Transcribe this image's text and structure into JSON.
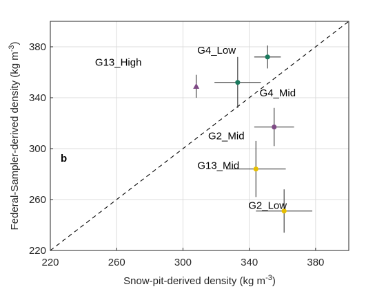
{
  "chart_data": {
    "type": "scatter",
    "panel_letter": "b",
    "xlabel": {
      "text": "Snow-pit-derived density (kg m",
      "sup": "-3",
      "tail": ")"
    },
    "ylabel": {
      "text": "Federal-Sampler-derived density (kg m",
      "sup": "-3",
      "tail": ")"
    },
    "xlim": [
      220,
      400
    ],
    "ylim": [
      220,
      400
    ],
    "xticks": [
      220,
      260,
      300,
      340,
      380
    ],
    "yticks": [
      220,
      260,
      300,
      340,
      380
    ],
    "grid": true,
    "one_to_one_line": true,
    "points": [
      {
        "label": "G4_Low",
        "x": 351,
        "y": 372,
        "xerr": 8,
        "yerr": 9,
        "marker": "circle",
        "color": "#1b7a5e"
      },
      {
        "label": "G4_Mid",
        "x": 333,
        "y": 352,
        "xerr": 14,
        "yerr": 20,
        "marker": "circle",
        "color": "#1b7a5e"
      },
      {
        "label": "G13_High",
        "x": 308,
        "y": 349,
        "xerr": 0,
        "yerr": 9,
        "marker": "triangle",
        "color": "#7e4a85"
      },
      {
        "label": "G13_Mid",
        "x": 355,
        "y": 317,
        "xerr": 12,
        "yerr": 15,
        "marker": "circle",
        "color": "#7e4a85"
      },
      {
        "label": "G2_Mid",
        "x": 344,
        "y": 284,
        "xerr": 18,
        "yerr": 22,
        "marker": "circle",
        "color": "#e6be00"
      },
      {
        "label": "G2_Low",
        "x": 361,
        "y": 251,
        "xerr": 17,
        "yerr": 17,
        "marker": "circle",
        "color": "#e6be00"
      }
    ]
  }
}
